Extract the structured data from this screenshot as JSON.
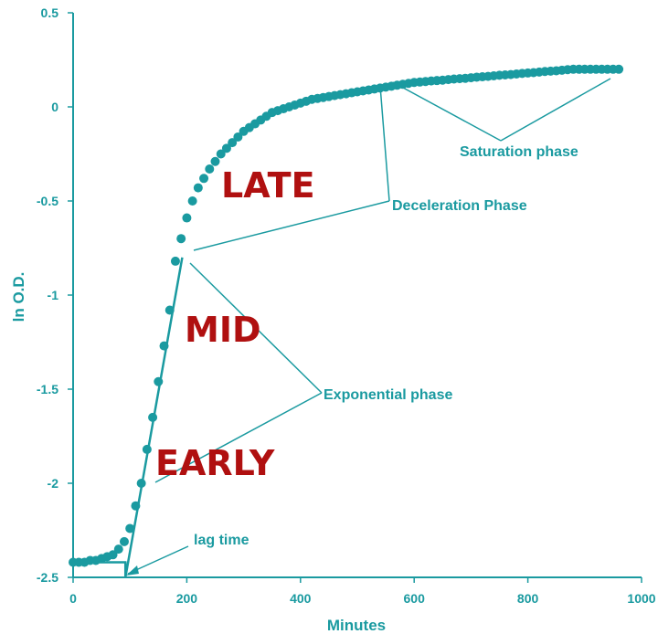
{
  "chart_data": {
    "type": "scatter",
    "xlabel": "Minutes",
    "ylabel": "ln O.D.",
    "xlim": [
      0,
      1000
    ],
    "ylim": [
      -2.5,
      0.5
    ],
    "x_ticks": [
      0,
      200,
      400,
      600,
      800,
      1000
    ],
    "y_ticks": [
      0.5,
      0,
      -0.5,
      -1,
      -1.5,
      -2,
      -2.5
    ],
    "x_tick_labels": [
      "0",
      "200",
      "400",
      "600",
      "800",
      "1000"
    ],
    "y_tick_labels": [
      "0.5",
      "0",
      "-0.5",
      "-1",
      "-1.5",
      "-2",
      "-2.5"
    ],
    "grid": false,
    "color": "#1a9aa0",
    "series": [
      {
        "x": [
          0,
          10,
          20,
          30,
          40,
          50,
          60,
          70,
          80,
          90,
          100,
          110,
          120,
          130,
          140,
          150,
          160,
          170,
          180,
          190,
          200,
          210,
          220,
          230,
          240,
          250,
          260,
          270,
          280,
          290,
          300,
          310,
          320,
          330,
          340,
          350,
          360,
          370,
          380,
          390,
          400,
          410,
          420,
          430,
          440,
          450,
          460,
          470,
          480,
          490,
          500,
          510,
          520,
          530,
          540,
          550,
          560,
          570,
          580,
          590,
          600,
          610,
          620,
          630,
          640,
          650,
          660,
          670,
          680,
          690,
          700,
          710,
          720,
          730,
          740,
          750,
          760,
          770,
          780,
          790,
          800,
          810,
          820,
          830,
          840,
          850,
          860,
          870,
          880,
          890,
          900,
          910,
          920,
          930,
          940,
          950,
          960
        ],
        "y": [
          -2.42,
          -2.42,
          -2.42,
          -2.41,
          -2.41,
          -2.4,
          -2.39,
          -2.38,
          -2.35,
          -2.31,
          -2.24,
          -2.12,
          -2.0,
          -1.82,
          -1.65,
          -1.46,
          -1.27,
          -1.08,
          -0.82,
          -0.7,
          -0.59,
          -0.5,
          -0.43,
          -0.38,
          -0.33,
          -0.29,
          -0.25,
          -0.22,
          -0.19,
          -0.16,
          -0.13,
          -0.11,
          -0.09,
          -0.07,
          -0.05,
          -0.03,
          -0.02,
          -0.01,
          0.0,
          0.01,
          0.02,
          0.03,
          0.04,
          0.045,
          0.05,
          0.055,
          0.06,
          0.065,
          0.07,
          0.075,
          0.08,
          0.085,
          0.09,
          0.095,
          0.1,
          0.105,
          0.11,
          0.115,
          0.12,
          0.125,
          0.13,
          0.132,
          0.135,
          0.138,
          0.14,
          0.142,
          0.145,
          0.148,
          0.15,
          0.152,
          0.155,
          0.158,
          0.16,
          0.162,
          0.165,
          0.168,
          0.17,
          0.172,
          0.175,
          0.178,
          0.18,
          0.182,
          0.185,
          0.188,
          0.19,
          0.192,
          0.195,
          0.198,
          0.2,
          0.2,
          0.2,
          0.2,
          0.2,
          0.2,
          0.2,
          0.2,
          0.2
        ]
      }
    ],
    "fit_lines": [
      {
        "x": [
          0,
          92,
          92
        ],
        "y": [
          -2.42,
          -2.42,
          -2.5
        ]
      },
      {
        "x": [
          92,
          192
        ],
        "y": [
          -2.5,
          -0.8
        ]
      }
    ],
    "annotations": {
      "lag_time": "lag time",
      "exponential": "Exponential phase",
      "deceleration": "Deceleration Phase",
      "saturation": "Saturation phase"
    },
    "stage_labels": {
      "late": "LATE",
      "mid": "MID",
      "early": "EARLY"
    }
  }
}
